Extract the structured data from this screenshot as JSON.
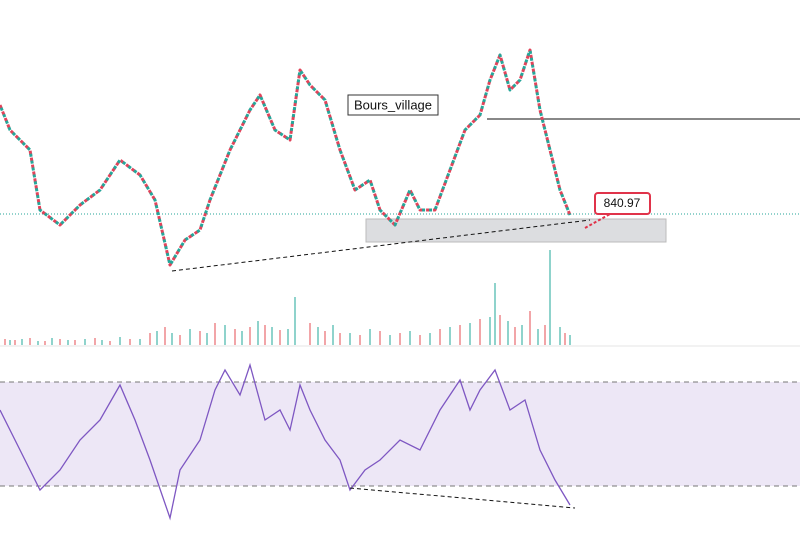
{
  "annotation": "Bours_village",
  "price_label": 840.97
}
